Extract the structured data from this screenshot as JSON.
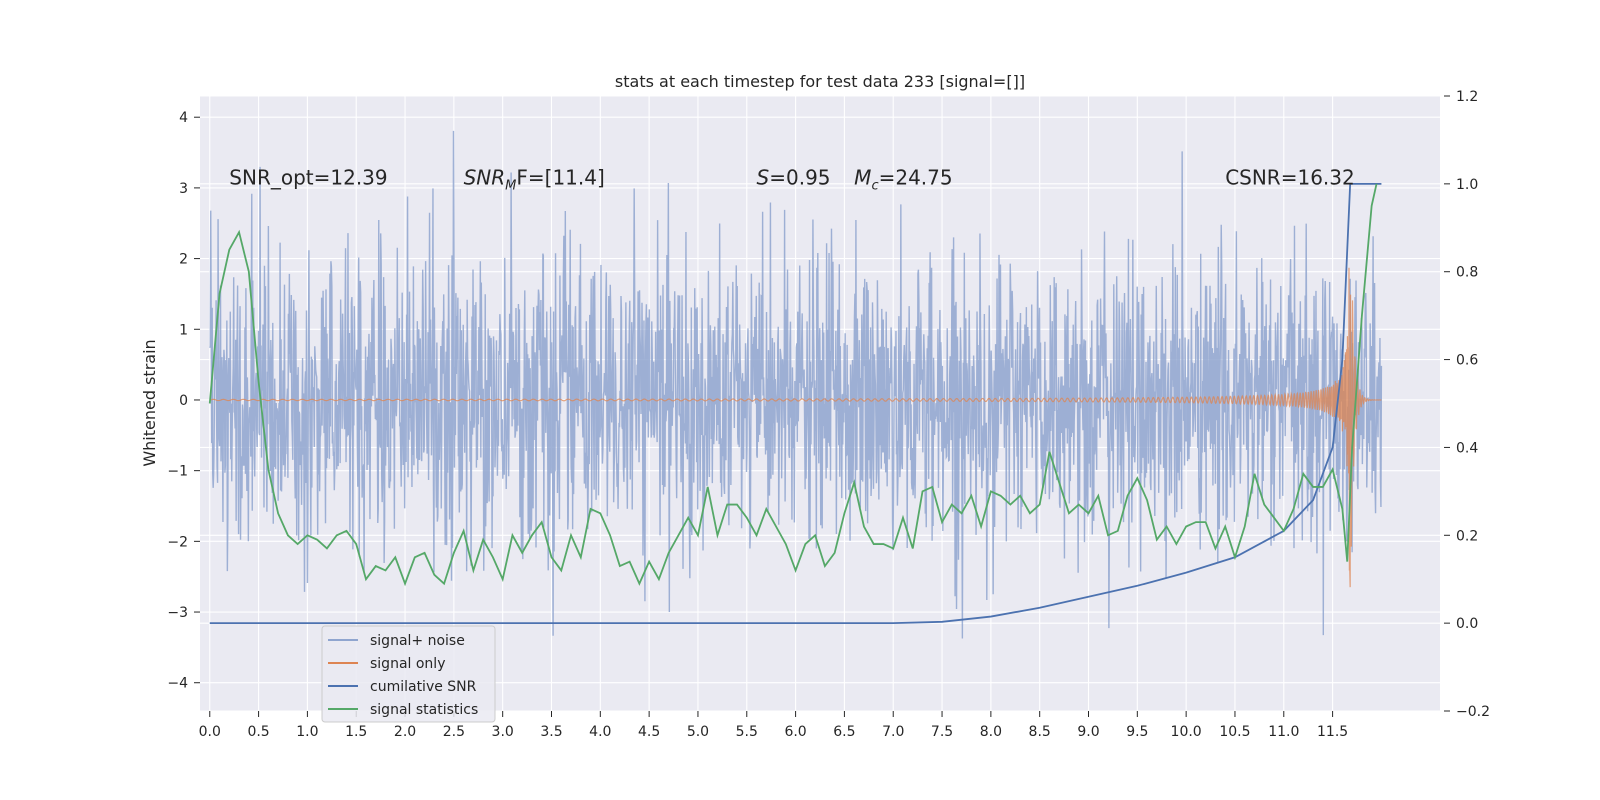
{
  "chart_data": {
    "type": "line",
    "title": "stats at each timestep for test data 233 [signal=[]]",
    "ylabel": "Whitened strain",
    "y2label": "",
    "xlim": [
      -0.1,
      12.6
    ],
    "ylim": [
      -4.4,
      4.3
    ],
    "y2lim": [
      -0.2,
      1.2
    ],
    "x_ticks": [
      0.0,
      0.5,
      1.0,
      1.5,
      2.0,
      2.5,
      3.0,
      3.5,
      4.0,
      4.5,
      5.0,
      5.5,
      6.0,
      6.5,
      7.0,
      7.5,
      8.0,
      8.5,
      9.0,
      9.5,
      10.0,
      10.5,
      11.0,
      11.5
    ],
    "x_tick_labels": [
      "0.0",
      "0.5",
      "1.0",
      "1.5",
      "2.0",
      "2.5",
      "3.0",
      "3.5",
      "4.0",
      "4.5",
      "5.0",
      "5.5",
      "6.0",
      "6.5",
      "7.0",
      "7.5",
      "8.0",
      "8.5",
      "9.0",
      "9.5",
      "10.0",
      "10.5",
      "11.0",
      "11.5"
    ],
    "y_ticks": [
      -4,
      -3,
      -2,
      -1,
      0,
      1,
      2,
      3,
      4
    ],
    "y_tick_labels": [
      "−4",
      "−3",
      "−2",
      "−1",
      "0",
      "1",
      "2",
      "3",
      "4"
    ],
    "y2_ticks": [
      -0.2,
      0.0,
      0.2,
      0.4,
      0.6,
      0.8,
      1.0,
      1.2
    ],
    "y2_tick_labels": [
      "−0.2",
      "0.0",
      "0.2",
      "0.4",
      "0.6",
      "0.8",
      "1.0",
      "1.2"
    ],
    "grid": true,
    "legend_position": "lower-left",
    "annotations": [
      {
        "key": "snr_opt",
        "text": "SNR_opt=12.39",
        "x": 0.2,
        "y": 3.05
      },
      {
        "key": "snr_mf",
        "text_main": "SNR",
        "text_sub": "M",
        "text_rest": "F=[11.4]",
        "x": 2.6,
        "y": 3.05
      },
      {
        "key": "s_val",
        "text_main": "S",
        "text_rest": "=0.95",
        "x": 5.6,
        "y": 3.05
      },
      {
        "key": "mc_val",
        "text_main": "M",
        "text_sub": "c",
        "text_rest": "=24.75",
        "x": 6.6,
        "y": 3.05
      },
      {
        "key": "csnr",
        "text": "CSNR=16.32",
        "x": 10.4,
        "y": 3.05
      }
    ],
    "series": [
      {
        "name": "signal+ noise",
        "axis": "left",
        "color": "#8fa5cf",
        "kind": "noise",
        "x_range": [
          0.0,
          12.0
        ],
        "samples": 2400,
        "amplitude_sd": 1.0,
        "envelope_bounds": [
          -3.6,
          3.9
        ]
      },
      {
        "name": "signal only",
        "axis": "left",
        "color": "#dd8452",
        "kind": "chirp",
        "x_range": [
          0.0,
          12.0
        ],
        "peak_amplitude": 3.0,
        "peak_time": 11.68
      },
      {
        "name": "cumilative SNR",
        "axis": "right",
        "color": "#4c72b0",
        "x": [
          0.0,
          1.0,
          2.0,
          3.0,
          4.0,
          5.0,
          6.0,
          7.0,
          7.5,
          8.0,
          8.5,
          9.0,
          9.5,
          10.0,
          10.5,
          11.0,
          11.3,
          11.5,
          11.6,
          11.68,
          11.8,
          12.0
        ],
        "y": [
          0.0,
          0.0,
          0.0,
          0.0,
          0.0,
          0.0,
          0.0,
          0.0,
          0.003,
          0.015,
          0.035,
          0.06,
          0.085,
          0.115,
          0.15,
          0.21,
          0.28,
          0.4,
          0.6,
          1.0,
          1.0,
          1.0
        ]
      },
      {
        "name": "signal statistics",
        "axis": "right",
        "color": "#55a868",
        "x": [
          0.0,
          0.1,
          0.2,
          0.3,
          0.4,
          0.5,
          0.6,
          0.7,
          0.8,
          0.9,
          1.0,
          1.1,
          1.2,
          1.3,
          1.4,
          1.5,
          1.6,
          1.7,
          1.8,
          1.9,
          2.0,
          2.1,
          2.2,
          2.3,
          2.4,
          2.5,
          2.6,
          2.7,
          2.8,
          2.9,
          3.0,
          3.1,
          3.2,
          3.3,
          3.4,
          3.5,
          3.6,
          3.7,
          3.8,
          3.9,
          4.0,
          4.1,
          4.2,
          4.3,
          4.4,
          4.5,
          4.6,
          4.7,
          4.8,
          4.9,
          5.0,
          5.1,
          5.2,
          5.3,
          5.4,
          5.5,
          5.6,
          5.7,
          5.8,
          5.9,
          6.0,
          6.1,
          6.2,
          6.3,
          6.4,
          6.5,
          6.6,
          6.7,
          6.8,
          6.9,
          7.0,
          7.1,
          7.2,
          7.3,
          7.4,
          7.5,
          7.6,
          7.7,
          7.8,
          7.9,
          8.0,
          8.1,
          8.2,
          8.3,
          8.4,
          8.5,
          8.6,
          8.7,
          8.8,
          8.9,
          9.0,
          9.1,
          9.2,
          9.3,
          9.4,
          9.5,
          9.6,
          9.7,
          9.8,
          9.9,
          10.0,
          10.1,
          10.2,
          10.3,
          10.4,
          10.5,
          10.6,
          10.7,
          10.8,
          10.9,
          11.0,
          11.1,
          11.2,
          11.3,
          11.4,
          11.5,
          11.6,
          11.65,
          11.7,
          11.8,
          11.9,
          11.95
        ],
        "y": [
          0.5,
          0.75,
          0.85,
          0.89,
          0.8,
          0.55,
          0.35,
          0.25,
          0.2,
          0.18,
          0.2,
          0.19,
          0.17,
          0.2,
          0.21,
          0.18,
          0.1,
          0.13,
          0.12,
          0.15,
          0.09,
          0.15,
          0.16,
          0.11,
          0.09,
          0.16,
          0.21,
          0.12,
          0.19,
          0.15,
          0.1,
          0.2,
          0.16,
          0.2,
          0.23,
          0.15,
          0.12,
          0.2,
          0.15,
          0.26,
          0.25,
          0.2,
          0.13,
          0.14,
          0.09,
          0.14,
          0.1,
          0.16,
          0.2,
          0.24,
          0.2,
          0.31,
          0.2,
          0.27,
          0.27,
          0.24,
          0.2,
          0.26,
          0.22,
          0.18,
          0.12,
          0.18,
          0.2,
          0.13,
          0.16,
          0.25,
          0.32,
          0.22,
          0.18,
          0.18,
          0.17,
          0.24,
          0.17,
          0.3,
          0.31,
          0.23,
          0.27,
          0.25,
          0.29,
          0.22,
          0.3,
          0.29,
          0.27,
          0.29,
          0.25,
          0.27,
          0.39,
          0.32,
          0.25,
          0.27,
          0.25,
          0.29,
          0.2,
          0.21,
          0.29,
          0.33,
          0.28,
          0.19,
          0.22,
          0.18,
          0.22,
          0.23,
          0.23,
          0.17,
          0.22,
          0.15,
          0.22,
          0.34,
          0.27,
          0.24,
          0.21,
          0.26,
          0.34,
          0.31,
          0.31,
          0.35,
          0.26,
          0.14,
          0.4,
          0.7,
          0.95,
          1.0
        ]
      }
    ]
  }
}
